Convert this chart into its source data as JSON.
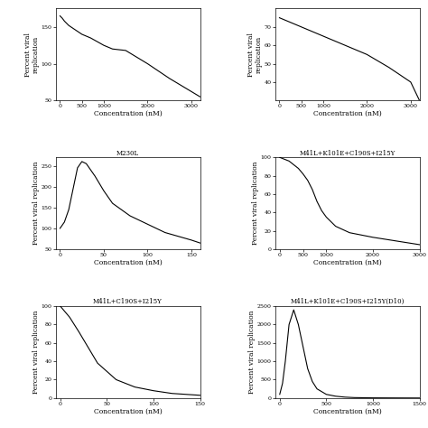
{
  "plots": [
    {
      "title": "",
      "xlabel": "Concentration (nM)",
      "ylabel": "Percent viral\nreplication",
      "x": [
        0,
        50,
        100,
        200,
        300,
        500,
        700,
        1000,
        1200,
        1500,
        2000,
        2500,
        3200
      ],
      "y": [
        165,
        162,
        158,
        152,
        148,
        140,
        135,
        125,
        120,
        118,
        100,
        80,
        55
      ],
      "xlim": [
        -100,
        3200
      ],
      "ylim": [
        50,
        175
      ],
      "xticks": [
        0,
        500,
        1000,
        2000,
        3000
      ],
      "yticks": [
        50,
        100,
        150
      ]
    },
    {
      "title": "",
      "xlabel": "Concentration (nM)",
      "ylabel": "Percent viral\nreplication",
      "x": [
        0,
        500,
        1000,
        1500,
        2000,
        2500,
        3000,
        3200
      ],
      "y": [
        75,
        70,
        65,
        60,
        55,
        48,
        40,
        30
      ],
      "xlim": [
        -100,
        3200
      ],
      "ylim": [
        30,
        80
      ],
      "xticks": [
        0,
        500,
        1000,
        2000,
        3000
      ],
      "yticks": [
        40,
        50,
        60,
        70
      ]
    },
    {
      "title": "M230L",
      "xlabel": "Concentration (nM)",
      "ylabel": "Percent viral replication",
      "x": [
        0,
        5,
        10,
        15,
        20,
        25,
        30,
        35,
        40,
        50,
        60,
        70,
        80,
        100,
        120,
        150,
        160
      ],
      "y": [
        100,
        115,
        145,
        195,
        245,
        260,
        255,
        240,
        225,
        190,
        160,
        145,
        130,
        110,
        90,
        72,
        65
      ],
      "xlim": [
        -5,
        160
      ],
      "ylim": [
        50,
        270
      ],
      "xticks": [
        0,
        50,
        100,
        150
      ],
      "yticks": [
        50,
        100,
        150,
        200,
        250
      ]
    },
    {
      "title": "M41L+K101E+C190S+I215Y",
      "xlabel": "Concentration (nM)",
      "ylabel": "Percent viral replication",
      "x": [
        0,
        50,
        100,
        200,
        300,
        400,
        500,
        600,
        700,
        800,
        900,
        1000,
        1200,
        1500,
        2000,
        2500,
        3000
      ],
      "y": [
        100,
        99,
        98,
        96,
        92,
        88,
        82,
        75,
        65,
        52,
        42,
        35,
        25,
        18,
        13,
        9,
        5
      ],
      "xlim": [
        -100,
        3000
      ],
      "ylim": [
        0,
        100
      ],
      "xticks": [
        0,
        500,
        1000,
        2000,
        3000
      ],
      "yticks": [
        0,
        20,
        40,
        60,
        80,
        100
      ]
    },
    {
      "title": "M41L+C190S+I215Y",
      "xlabel": "Concentration (nM)",
      "ylabel": "Percent viral replication",
      "x": [
        0,
        10,
        20,
        30,
        40,
        60,
        80,
        100,
        120,
        150
      ],
      "y": [
        100,
        88,
        72,
        55,
        38,
        20,
        12,
        8,
        5,
        3
      ],
      "xlim": [
        -5,
        150
      ],
      "ylim": [
        0,
        100
      ],
      "xticks": [
        0,
        50,
        100,
        150
      ],
      "yticks": [
        0,
        20,
        40,
        60,
        80,
        100
      ]
    },
    {
      "title": "M41L+K101E+C190S+I215Y(D10)",
      "xlabel": "Concentration (nM)",
      "ylabel": "Percent viral replication",
      "x": [
        0,
        30,
        60,
        100,
        150,
        200,
        250,
        300,
        350,
        400,
        500,
        600,
        700,
        800,
        1000,
        1200,
        1500
      ],
      "y": [
        100,
        400,
        1000,
        2000,
        2400,
        2000,
        1400,
        800,
        450,
        250,
        100,
        50,
        25,
        12,
        5,
        3,
        1
      ],
      "xlim": [
        -50,
        1500
      ],
      "ylim": [
        0,
        2500
      ],
      "xticks": [
        0,
        500,
        1000,
        1500
      ],
      "yticks": [
        0,
        500,
        1000,
        1500,
        2000,
        2500
      ]
    }
  ],
  "fig_bg": "#ffffff",
  "line_color": "black",
  "line_width": 0.8,
  "font_size": 5.5,
  "tick_font_size": 4.5
}
